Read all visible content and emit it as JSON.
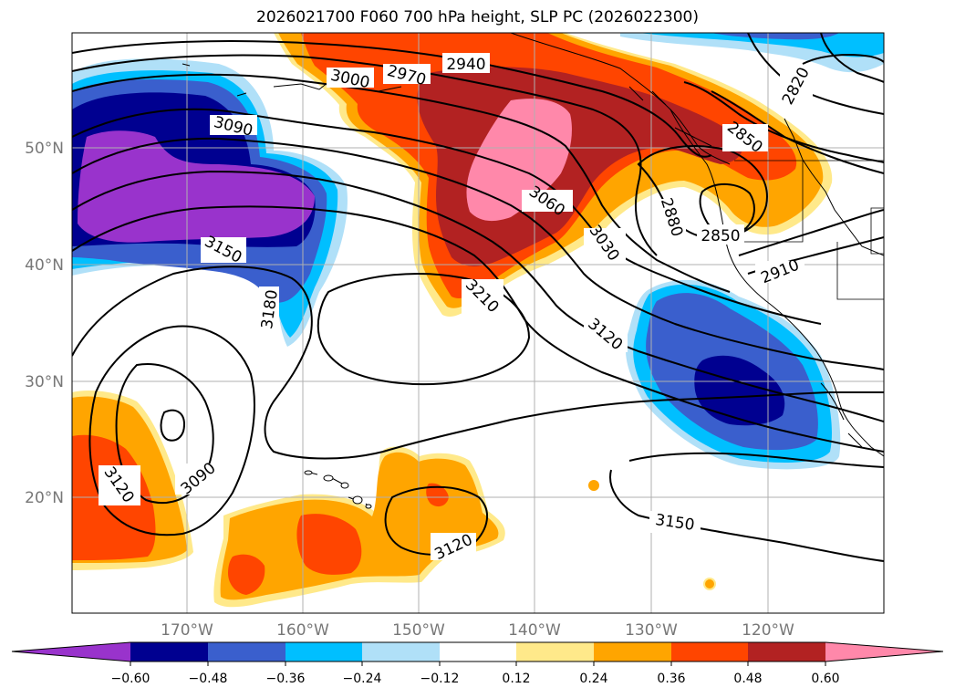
{
  "title": "2026021700 F060 700 hPa height, SLP PC (2026022300)",
  "latitude_labels": [
    "50°N",
    "40°N",
    "30°N",
    "20°N"
  ],
  "longitude_labels": [
    "170°W",
    "160°W",
    "150°W",
    "140°W",
    "130°W",
    "120°W"
  ],
  "contour_labels": [
    "3000",
    "2970",
    "2940",
    "2820",
    "3090",
    "2850",
    "3060",
    "2880",
    "2850",
    "3030",
    "3150",
    "2910",
    "3210",
    "3180",
    "3120",
    "3120",
    "3090",
    "3150",
    "3120"
  ],
  "colorbar": {
    "ticks": [
      "−0.60",
      "−0.48",
      "−0.36",
      "−0.24",
      "−0.12",
      "0.12",
      "0.24",
      "0.36",
      "0.48",
      "0.60"
    ],
    "colors": [
      "#9933cc",
      "#000090",
      "#3a5fcd",
      "#00bfff",
      "#b0e0f8",
      "#ffffff",
      "#ffe98a",
      "#ffa500",
      "#ff4500",
      "#b22222",
      "#ff88aa"
    ]
  }
}
